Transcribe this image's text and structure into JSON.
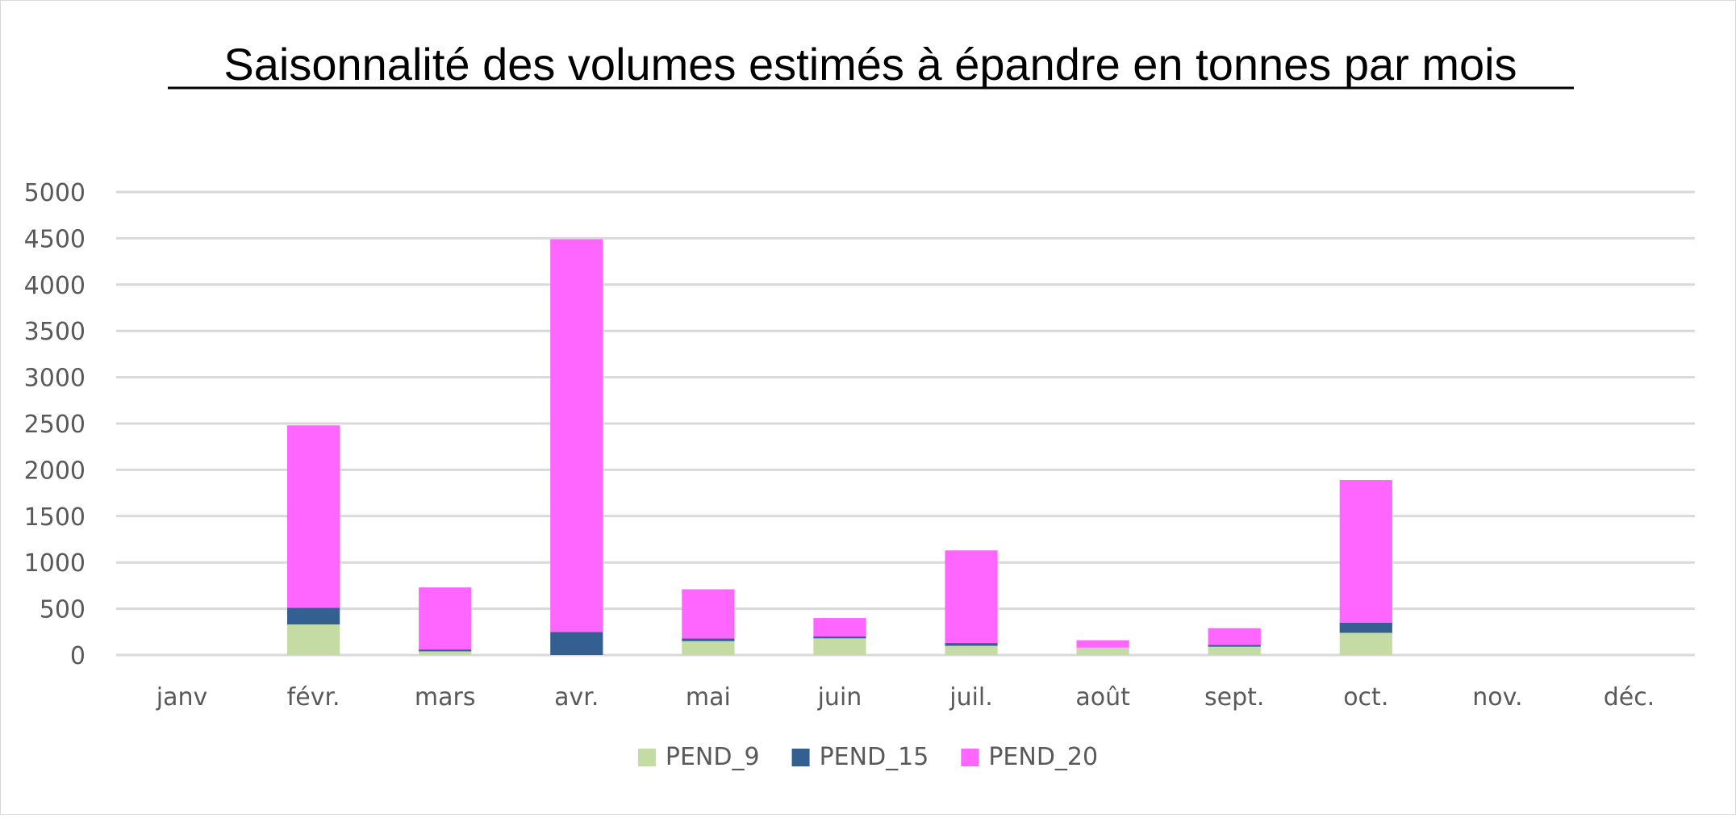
{
  "chart_data": {
    "type": "bar",
    "stacked": true,
    "title": "Saisonnalité des volumes estimés à épandre en tonnes par mois",
    "xlabel": "",
    "ylabel": "",
    "categories": [
      "janv",
      "févr.",
      "mars",
      "avr.",
      "mai",
      "juin",
      "juil.",
      "août",
      "sept.",
      "oct.",
      "nov.",
      "déc."
    ],
    "series": [
      {
        "name": "PEND_9",
        "color": "#c5dba4",
        "values": [
          0,
          330,
          40,
          0,
          150,
          180,
          100,
          80,
          90,
          240,
          0,
          0
        ]
      },
      {
        "name": "PEND_15",
        "color": "#345f91",
        "values": [
          0,
          180,
          20,
          250,
          30,
          20,
          30,
          0,
          20,
          110,
          0,
          0
        ]
      },
      {
        "name": "PEND_20",
        "color": "#ff66ff",
        "values": [
          0,
          1970,
          670,
          4240,
          530,
          200,
          1000,
          80,
          180,
          1540,
          0,
          0
        ]
      }
    ],
    "yticks": [
      0,
      500,
      1000,
      1500,
      2000,
      2500,
      3000,
      3500,
      4000,
      4500,
      5000
    ],
    "ylim": [
      0,
      5000
    ],
    "grid": true,
    "legend": "bottom"
  }
}
